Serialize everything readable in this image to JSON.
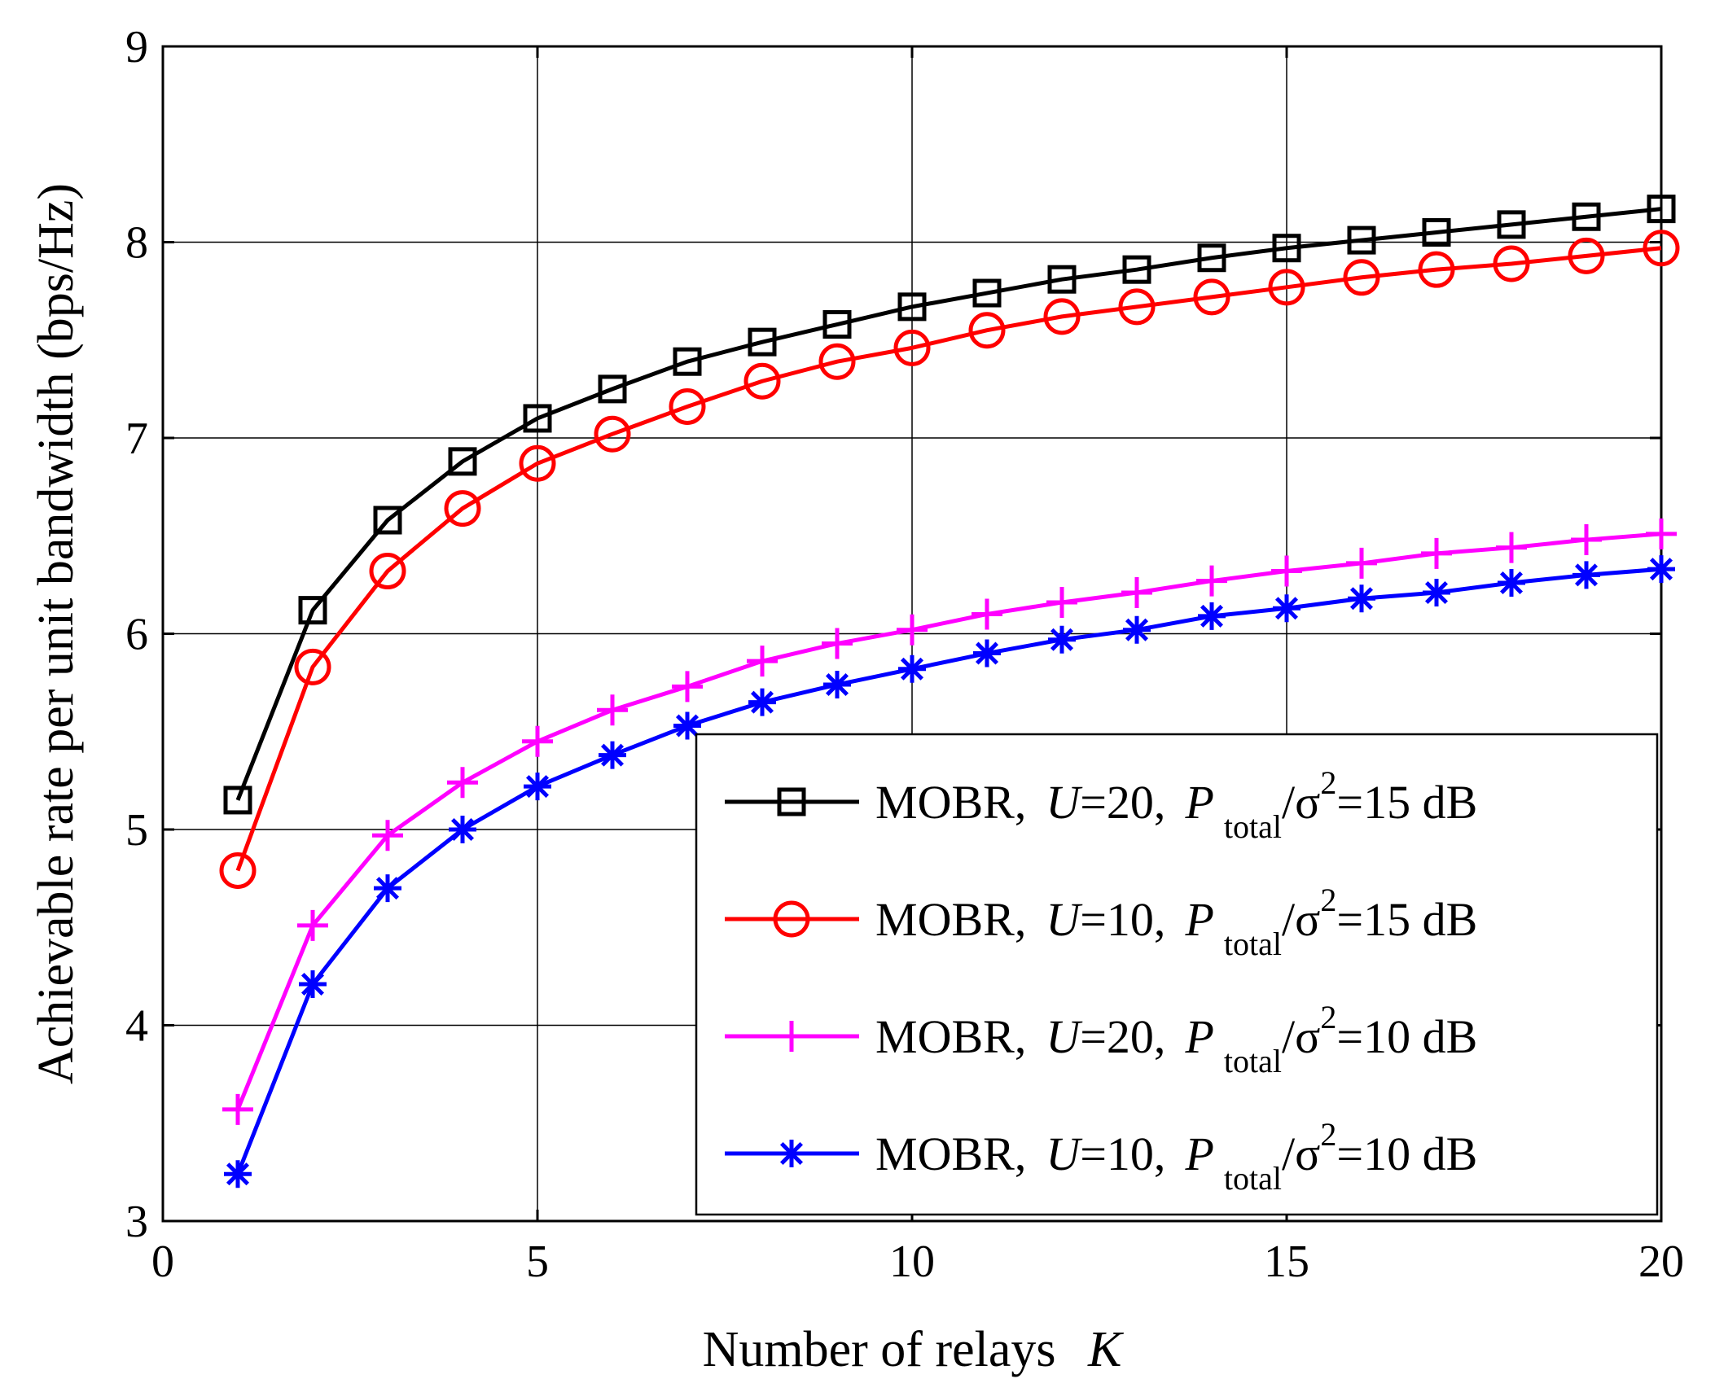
{
  "chart_data": {
    "type": "line",
    "title": "",
    "xlabel": {
      "text": "Number of relays",
      "var": "K"
    },
    "ylabel": "Achievable rate per unit bandwidth (bps/Hz)",
    "xlim": [
      0,
      20
    ],
    "ylim": [
      3,
      9
    ],
    "xticks": [
      0,
      5,
      10,
      15,
      20
    ],
    "yticks": [
      3,
      4,
      5,
      6,
      7,
      8,
      9
    ],
    "grid": true,
    "legend_position": "bottom-right",
    "x": [
      1,
      2,
      3,
      4,
      5,
      6,
      7,
      8,
      9,
      10,
      11,
      12,
      13,
      14,
      15,
      16,
      17,
      18,
      19,
      20
    ],
    "series": [
      {
        "name": "MOBR, U=20, P_total/σ^2=15 dB",
        "legend": {
          "prefix": "MOBR,",
          "uvar": "U",
          "uval": "=20,",
          "pvar": "P",
          "psub": "total",
          "sigma": "/σ",
          "sup": "2",
          "tail": "=15 dB"
        },
        "color": "#000000",
        "marker": "square",
        "values": [
          5.15,
          6.12,
          6.58,
          6.88,
          7.1,
          7.25,
          7.39,
          7.49,
          7.58,
          7.67,
          7.74,
          7.81,
          7.86,
          7.92,
          7.97,
          8.01,
          8.05,
          8.09,
          8.13,
          8.17
        ]
      },
      {
        "name": "MOBR, U=10, P_total/σ^2=15 dB",
        "legend": {
          "prefix": "MOBR,",
          "uvar": "U",
          "uval": "=10,",
          "pvar": "P",
          "psub": "total",
          "sigma": "/σ",
          "sup": "2",
          "tail": "=15 dB"
        },
        "color": "#ff0000",
        "marker": "circle",
        "values": [
          4.79,
          5.83,
          6.32,
          6.64,
          6.87,
          7.02,
          7.16,
          7.29,
          7.39,
          7.46,
          7.55,
          7.62,
          7.67,
          7.72,
          7.77,
          7.82,
          7.86,
          7.89,
          7.93,
          7.97
        ]
      },
      {
        "name": "MOBR, U=20, P_total/σ^2=10 dB",
        "legend": {
          "prefix": "MOBR,",
          "uvar": "U",
          "uval": "=20,",
          "pvar": "P",
          "psub": "total",
          "sigma": "/σ",
          "sup": "2",
          "tail": "=10 dB"
        },
        "color": "#ff00ff",
        "marker": "plus",
        "values": [
          3.57,
          4.51,
          4.97,
          5.24,
          5.45,
          5.61,
          5.73,
          5.86,
          5.95,
          6.02,
          6.1,
          6.16,
          6.21,
          6.27,
          6.32,
          6.36,
          6.41,
          6.44,
          6.48,
          6.51
        ]
      },
      {
        "name": "MOBR, U=10, P_total/σ^2=10 dB",
        "legend": {
          "prefix": "MOBR,",
          "uvar": "U",
          "uval": "=10,",
          "pvar": "P",
          "psub": "total",
          "sigma": "/σ",
          "sup": "2",
          "tail": "=10 dB"
        },
        "color": "#0000ff",
        "marker": "star",
        "values": [
          3.24,
          4.21,
          4.7,
          5.0,
          5.22,
          5.38,
          5.53,
          5.65,
          5.74,
          5.82,
          5.9,
          5.97,
          6.02,
          6.09,
          6.13,
          6.18,
          6.21,
          6.26,
          6.3,
          6.33
        ]
      }
    ]
  }
}
